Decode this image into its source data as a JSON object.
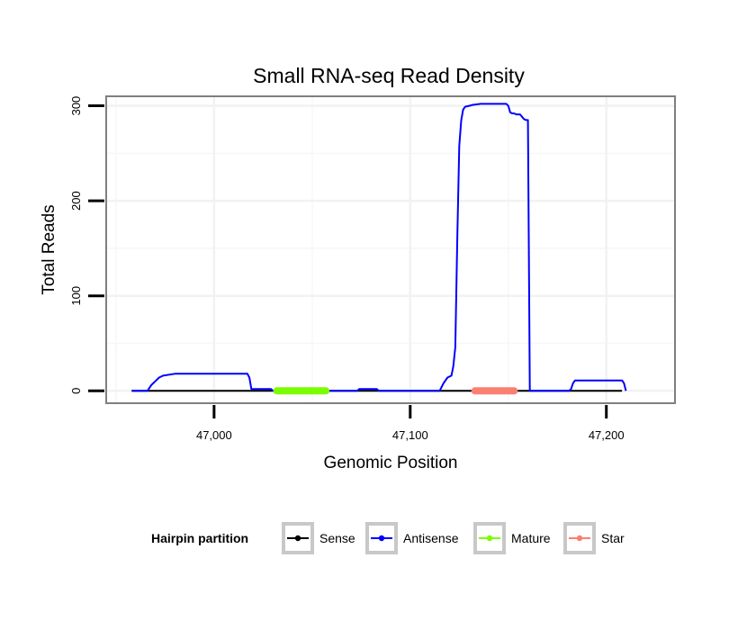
{
  "chart_data": {
    "type": "line",
    "title": "Small RNA-seq Read Density",
    "xlabel": "Genomic Position",
    "ylabel": "Total Reads",
    "xlim": [
      46945,
      47235
    ],
    "ylim": [
      -13,
      310
    ],
    "x_ticks": [
      {
        "value": 47000,
        "label": "47,000"
      },
      {
        "value": 47100,
        "label": "47,100"
      },
      {
        "value": 47200,
        "label": "47,200"
      }
    ],
    "y_ticks": [
      {
        "value": 0,
        "label": "0"
      },
      {
        "value": 100,
        "label": "100"
      },
      {
        "value": 200,
        "label": "200"
      },
      {
        "value": 300,
        "label": "300"
      }
    ],
    "grid": true,
    "legend": {
      "title": "Hairpin partition",
      "position": "bottom",
      "entries": [
        {
          "name": "Sense",
          "color": "#000000"
        },
        {
          "name": "Antisense",
          "color": "#0000ff"
        },
        {
          "name": "Mature",
          "color": "#7cfc00"
        },
        {
          "name": "Star",
          "color": "#fa8072"
        }
      ]
    },
    "series": [
      {
        "name": "Sense",
        "color": "#000000",
        "width": 2,
        "x": [
          46958,
          47208
        ],
        "y": [
          0,
          0
        ]
      },
      {
        "name": "Antisense",
        "color": "#0000ff",
        "width": 2,
        "x": [
          46958,
          46966,
          46968,
          46970,
          46972,
          46974,
          46980,
          46990,
          46999,
          47000,
          47001,
          47017,
          47018,
          47019,
          47029,
          47030,
          47031,
          47033,
          47034,
          47072,
          47073,
          47074,
          47083,
          47084,
          47085,
          47113,
          47115,
          47117,
          47119,
          47121,
          47122,
          47123,
          47124,
          47125,
          47126,
          47127,
          47128,
          47130,
          47132,
          47136,
          47144,
          47145,
          47146,
          47148,
          47149,
          47150,
          47151,
          47152,
          47153,
          47154,
          47156,
          47158,
          47159,
          47160,
          47161,
          47162,
          47163,
          47164,
          47166,
          47181,
          47182,
          47183,
          47184,
          47185,
          47188,
          47190,
          47200,
          47208,
          47209,
          47210
        ],
        "y": [
          0,
          0,
          6,
          10,
          14,
          16,
          18,
          18,
          18,
          18,
          18,
          18,
          14,
          2,
          2,
          0,
          0,
          0,
          0,
          0,
          0,
          2,
          2,
          0,
          0,
          0,
          0,
          8,
          14,
          16,
          26,
          46,
          160,
          258,
          285,
          296,
          299,
          300,
          301,
          302,
          302,
          302,
          302,
          302,
          302,
          300,
          293,
          292,
          292,
          291,
          291,
          286,
          285,
          285,
          0,
          0,
          0,
          0,
          0,
          0,
          2,
          8,
          11,
          11,
          11,
          11,
          11,
          11,
          8,
          0
        ]
      },
      {
        "name": "Mature",
        "color": "#7cfc00",
        "width": 8,
        "x": [
          47032,
          47057
        ],
        "y": [
          0,
          0
        ]
      },
      {
        "name": "Star",
        "color": "#fa8072",
        "width": 8,
        "x": [
          47133,
          47153
        ],
        "y": [
          0,
          0
        ]
      }
    ]
  }
}
